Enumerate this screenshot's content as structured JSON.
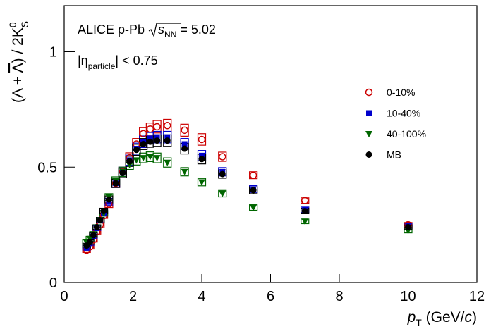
{
  "chart_data": {
    "type": "scatter",
    "annotation_lines": [
      [
        "ALICE p-Pb ",
        "s",
        "NN",
        " = 5.02"
      ],
      [
        "|η",
        "particle",
        "| < 0.75"
      ]
    ],
    "y_label": [
      "(Λ + ",
      "Λ",
      ") / 2K",
      "0",
      "S"
    ],
    "x_label": [
      "p",
      "T",
      " (GeV/",
      "c",
      ")"
    ],
    "xlim": [
      0,
      12
    ],
    "ylim": [
      0,
      1.2
    ],
    "xticks": [
      0,
      2,
      4,
      6,
      8,
      10,
      12
    ],
    "yticks": [
      0,
      0.5,
      1
    ],
    "x": [
      0.65,
      0.75,
      0.85,
      0.95,
      1.05,
      1.15,
      1.3,
      1.5,
      1.7,
      1.9,
      2.1,
      2.3,
      2.5,
      2.7,
      3.0,
      3.5,
      4.0,
      4.6,
      5.5,
      7.0,
      10.0
    ],
    "series": [
      {
        "name": "0-10%",
        "color": "#cc0000",
        "marker": "open-circle",
        "values": [
          0.14,
          0.155,
          0.185,
          0.22,
          0.25,
          0.29,
          0.34,
          0.43,
          0.48,
          0.54,
          0.6,
          0.645,
          0.665,
          0.675,
          0.68,
          0.66,
          0.62,
          0.545,
          0.465,
          0.355,
          0.25
        ],
        "errors": [
          0.01,
          0.01,
          0.01,
          0.01,
          0.012,
          0.012,
          0.015,
          0.018,
          0.02,
          0.022,
          0.024,
          0.026,
          0.026,
          0.027,
          0.027,
          0.026,
          0.025,
          0.02,
          0.015,
          0.012,
          0.01
        ]
      },
      {
        "name": "10-40%",
        "color": "#0000cc",
        "marker": "square",
        "values": [
          0.15,
          0.17,
          0.2,
          0.235,
          0.27,
          0.3,
          0.35,
          0.43,
          0.48,
          0.53,
          0.58,
          0.61,
          0.625,
          0.63,
          0.63,
          0.6,
          0.55,
          0.48,
          0.405,
          0.315,
          0.245
        ],
        "errors": [
          0.01,
          0.01,
          0.01,
          0.01,
          0.012,
          0.012,
          0.015,
          0.018,
          0.02,
          0.022,
          0.024,
          0.025,
          0.025,
          0.025,
          0.025,
          0.024,
          0.022,
          0.018,
          0.015,
          0.012,
          0.01
        ]
      },
      {
        "name": "40-100%",
        "color": "#006600",
        "marker": "triangle-down",
        "values": [
          0.175,
          0.19,
          0.21,
          0.24,
          0.27,
          0.3,
          0.37,
          0.44,
          0.48,
          0.51,
          0.53,
          0.54,
          0.545,
          0.54,
          0.52,
          0.48,
          0.435,
          0.385,
          0.325,
          0.265,
          0.225
        ],
        "errors": [
          0.01,
          0.01,
          0.01,
          0.01,
          0.012,
          0.012,
          0.015,
          0.018,
          0.02,
          0.02,
          0.021,
          0.021,
          0.021,
          0.021,
          0.02,
          0.018,
          0.016,
          0.014,
          0.012,
          0.01,
          0.01
        ]
      },
      {
        "name": "MB",
        "color": "#000000",
        "marker": "circle",
        "values": [
          0.16,
          0.175,
          0.205,
          0.24,
          0.27,
          0.31,
          0.36,
          0.43,
          0.475,
          0.525,
          0.575,
          0.6,
          0.61,
          0.615,
          0.615,
          0.58,
          0.535,
          0.47,
          0.4,
          0.31,
          0.24
        ],
        "errors": [
          0.01,
          0.01,
          0.01,
          0.01,
          0.012,
          0.012,
          0.015,
          0.018,
          0.02,
          0.022,
          0.024,
          0.024,
          0.024,
          0.025,
          0.025,
          0.023,
          0.021,
          0.018,
          0.015,
          0.012,
          0.01
        ]
      }
    ]
  }
}
